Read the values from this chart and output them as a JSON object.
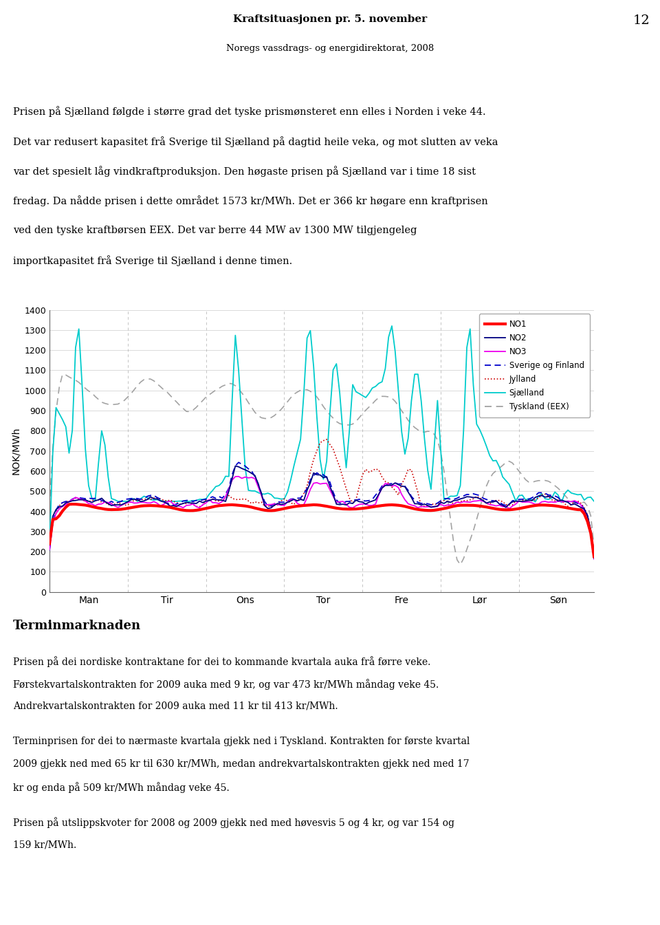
{
  "title_line1": "Kraftsituasjonen pr. 5. november",
  "title_line2": "Noregs vassdrags- og energidirektorat, 2008",
  "page_number": "12",
  "header_text_lines": [
    "Prisen på Sjælland følgde i større grad det tyske prismønsteret enn elles i Norden i veke 44.",
    "Det var redusert kapasitet frå Sverige til Sjælland på dagtid heile veka, og mot slutten av veka",
    "var det spesielt låg vindkraftproduksjon. Den høgaste prisen på Sjælland var i time 18 sist",
    "fredag. Da nådde prisen i dette området 1573 kr/MWh. Det er 366 kr høgare enn kraftprisen",
    "ved den tyske kraftbørsen EEX. Det var berre 44 MW av 1300 MW tilgjengeleg",
    "importkapasitet frå Sverige til Sjælland i denne timen."
  ],
  "ylabel": "NOK/MWh",
  "yticks": [
    0,
    100,
    200,
    300,
    400,
    500,
    600,
    700,
    800,
    900,
    1000,
    1100,
    1200,
    1300,
    1400
  ],
  "xtick_labels": [
    "Man",
    "Tir",
    "Ons",
    "Tor",
    "Fre",
    "Lør",
    "Søn"
  ],
  "footer_blocks": [
    {
      "lines": [
        "Terminmarknaden"
      ],
      "bold": true,
      "size": 13
    },
    {
      "lines": [
        "Prisen på dei nordiske kontraktane for dei to kommande kvartala auka frå førre veke.",
        "Førstekvartalskontrakten for 2009 auka med 9 kr, og var 473 kr/MWh måndag veke 45.",
        "Andrekvartalskontrakten for 2009 auka med 11 kr til 413 kr/MWh."
      ],
      "bold": false,
      "size": 10
    },
    {
      "lines": [
        "Terminprisen for dei to nærmaste kvartala gjekk ned i Tyskland. Kontrakten for første kvartal",
        "2009 gjekk ned med 65 kr til 630 kr/MWh, medan andrekvartalskontrakten gjekk ned med 17",
        "kr og enda på 509 kr/MWh måndag veke 45."
      ],
      "bold": false,
      "size": 10
    },
    {
      "lines": [
        "Prisen på utslippskvoter for 2008 og 2009 gjekk ned med høvesvis 5 og 4 kr, og var 154 og",
        "159 kr/MWh."
      ],
      "bold": false,
      "size": 10
    }
  ],
  "colors": {
    "NO1": "#ff0000",
    "NO2": "#000080",
    "NO3": "#ee00ee",
    "Sverige og Finland": "#0000cc",
    "Jylland": "#cc0000",
    "Sjaelland": "#00cccc",
    "Tyskland (EEX)": "#999999"
  }
}
